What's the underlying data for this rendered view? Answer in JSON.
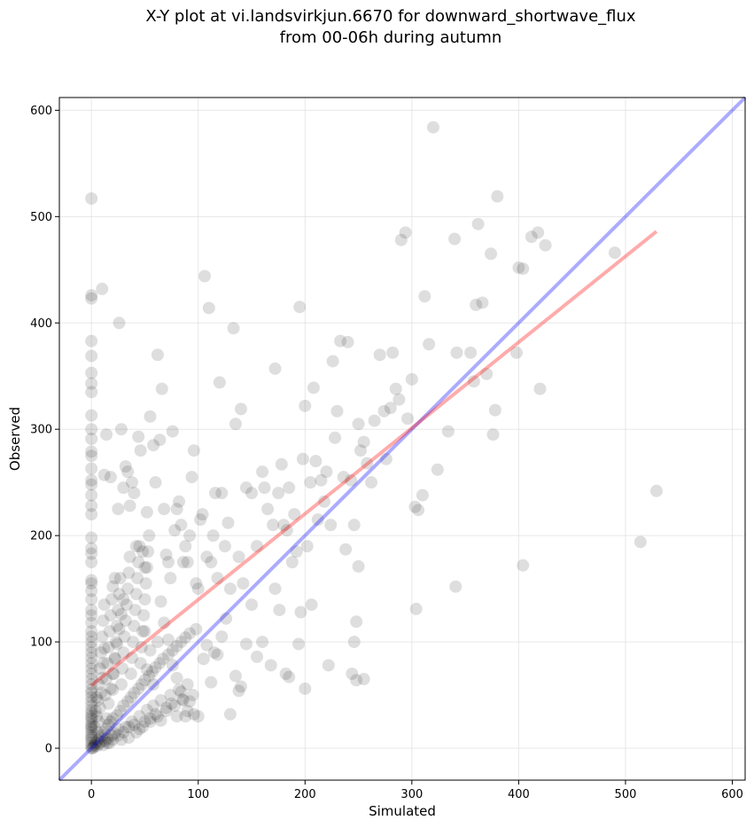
{
  "chart_data": {
    "type": "scatter",
    "title_line1": "X-Y plot at vi.landsvirkjun.6670 for downward_shortwave_flux",
    "title_line2": "from 00-06h during autumn",
    "xlabel": "Simulated",
    "ylabel": "Observed",
    "xlim": [
      -30,
      612
    ],
    "ylim": [
      -30,
      612
    ],
    "xticks": [
      0,
      100,
      200,
      300,
      400,
      500,
      600
    ],
    "yticks": [
      0,
      100,
      200,
      300,
      400,
      500,
      600
    ],
    "xtick_labels": [
      "0",
      "100",
      "200",
      "300",
      "400",
      "500",
      "600"
    ],
    "ytick_labels": [
      "0",
      "100",
      "200",
      "300",
      "400",
      "500",
      "600"
    ],
    "grid": true,
    "point_color": "#000000",
    "point_opacity": 0.13,
    "one_to_one_line": {
      "color": "#0000ff",
      "from": [
        -30,
        -30
      ],
      "to": [
        612,
        612
      ]
    },
    "fit_line": {
      "color": "#ff0000",
      "from": [
        0,
        59
      ],
      "to": [
        529,
        486
      ]
    },
    "points": [
      [
        0,
        0
      ],
      [
        0,
        2
      ],
      [
        0,
        5
      ],
      [
        0,
        8
      ],
      [
        0,
        10
      ],
      [
        0,
        12
      ],
      [
        0,
        15
      ],
      [
        0,
        18
      ],
      [
        0,
        20
      ],
      [
        0,
        22
      ],
      [
        0,
        25
      ],
      [
        0,
        28
      ],
      [
        0,
        30
      ],
      [
        0,
        33
      ],
      [
        0,
        36
      ],
      [
        0,
        40
      ],
      [
        0,
        44
      ],
      [
        0,
        48
      ],
      [
        0,
        52
      ],
      [
        0,
        55
      ],
      [
        0,
        60
      ],
      [
        0,
        65
      ],
      [
        0,
        70
      ],
      [
        0,
        75
      ],
      [
        0,
        80
      ],
      [
        0,
        85
      ],
      [
        0,
        90
      ],
      [
        0,
        95
      ],
      [
        0,
        100
      ],
      [
        0,
        105
      ],
      [
        0,
        110
      ],
      [
        0,
        118
      ],
      [
        0,
        125
      ],
      [
        0,
        130
      ],
      [
        0,
        140
      ],
      [
        0,
        148
      ],
      [
        0,
        155
      ],
      [
        0,
        158
      ],
      [
        0,
        175
      ],
      [
        0,
        183
      ],
      [
        0,
        188
      ],
      [
        0,
        198
      ],
      [
        0,
        220
      ],
      [
        0,
        228
      ],
      [
        0,
        238
      ],
      [
        0,
        248
      ],
      [
        0,
        252
      ],
      [
        0,
        263
      ],
      [
        0,
        275
      ],
      [
        0,
        279
      ],
      [
        0,
        291
      ],
      [
        0,
        300
      ],
      [
        0,
        313
      ],
      [
        0,
        335
      ],
      [
        0,
        343
      ],
      [
        0,
        353
      ],
      [
        0,
        369
      ],
      [
        0,
        383
      ],
      [
        0,
        423
      ],
      [
        0,
        426
      ],
      [
        0,
        517
      ],
      [
        1,
        0
      ],
      [
        2,
        1
      ],
      [
        3,
        3
      ],
      [
        4,
        5
      ],
      [
        5,
        2
      ],
      [
        6,
        8
      ],
      [
        7,
        4
      ],
      [
        8,
        10
      ],
      [
        9,
        6
      ],
      [
        10,
        12
      ],
      [
        11,
        3
      ],
      [
        12,
        15
      ],
      [
        13,
        7
      ],
      [
        14,
        18
      ],
      [
        15,
        9
      ],
      [
        16,
        22
      ],
      [
        17,
        5
      ],
      [
        18,
        25
      ],
      [
        19,
        12
      ],
      [
        20,
        28
      ],
      [
        22,
        14
      ],
      [
        24,
        31
      ],
      [
        25,
        18
      ],
      [
        27,
        35
      ],
      [
        28,
        8
      ],
      [
        30,
        40
      ],
      [
        32,
        20
      ],
      [
        34,
        44
      ],
      [
        35,
        10
      ],
      [
        37,
        48
      ],
      [
        38,
        25
      ],
      [
        40,
        52
      ],
      [
        42,
        15
      ],
      [
        44,
        56
      ],
      [
        45,
        30
      ],
      [
        47,
        60
      ],
      [
        48,
        20
      ],
      [
        50,
        64
      ],
      [
        52,
        36
      ],
      [
        54,
        68
      ],
      [
        55,
        25
      ],
      [
        57,
        72
      ],
      [
        58,
        40
      ],
      [
        60,
        76
      ],
      [
        62,
        30
      ],
      [
        64,
        80
      ],
      [
        65,
        45
      ],
      [
        67,
        84
      ],
      [
        70,
        35
      ],
      [
        72,
        88
      ],
      [
        74,
        50
      ],
      [
        76,
        92
      ],
      [
        78,
        40
      ],
      [
        80,
        96
      ],
      [
        82,
        55
      ],
      [
        84,
        100
      ],
      [
        86,
        45
      ],
      [
        88,
        104
      ],
      [
        90,
        60
      ],
      [
        92,
        108
      ],
      [
        95,
        50
      ],
      [
        98,
        112
      ],
      [
        5,
        30
      ],
      [
        6,
        45
      ],
      [
        7,
        60
      ],
      [
        8,
        75
      ],
      [
        9,
        90
      ],
      [
        10,
        105
      ],
      [
        11,
        120
      ],
      [
        12,
        135
      ],
      [
        13,
        50
      ],
      [
        14,
        65
      ],
      [
        15,
        80
      ],
      [
        16,
        95
      ],
      [
        17,
        110
      ],
      [
        18,
        125
      ],
      [
        19,
        140
      ],
      [
        20,
        55
      ],
      [
        21,
        70
      ],
      [
        22,
        85
      ],
      [
        23,
        100
      ],
      [
        24,
        115
      ],
      [
        25,
        130
      ],
      [
        26,
        145
      ],
      [
        27,
        160
      ],
      [
        28,
        60
      ],
      [
        29,
        75
      ],
      [
        30,
        90
      ],
      [
        31,
        105
      ],
      [
        32,
        120
      ],
      [
        33,
        135
      ],
      [
        34,
        150
      ],
      [
        35,
        165
      ],
      [
        36,
        180
      ],
      [
        37,
        70
      ],
      [
        38,
        85
      ],
      [
        39,
        100
      ],
      [
        40,
        115
      ],
      [
        41,
        130
      ],
      [
        42,
        145
      ],
      [
        43,
        160
      ],
      [
        44,
        175
      ],
      [
        45,
        190
      ],
      [
        46,
        80
      ],
      [
        47,
        95
      ],
      [
        48,
        110
      ],
      [
        49,
        125
      ],
      [
        50,
        140
      ],
      [
        51,
        155
      ],
      [
        52,
        170
      ],
      [
        53,
        185
      ],
      [
        54,
        200
      ],
      [
        3,
        20
      ],
      [
        4,
        35
      ],
      [
        5,
        48
      ],
      [
        6,
        15
      ],
      [
        7,
        25
      ],
      [
        8,
        38
      ],
      [
        9,
        52
      ],
      [
        10,
        66
      ],
      [
        11,
        80
      ],
      [
        12,
        94
      ],
      [
        14,
        28
      ],
      [
        16,
        42
      ],
      [
        18,
        56
      ],
      [
        20,
        70
      ],
      [
        22,
        84
      ],
      [
        24,
        98
      ],
      [
        26,
        112
      ],
      [
        28,
        126
      ],
      [
        30,
        140
      ],
      [
        15,
        5
      ],
      [
        20,
        8
      ],
      [
        25,
        12
      ],
      [
        30,
        15
      ],
      [
        35,
        20
      ],
      [
        40,
        22
      ],
      [
        45,
        18
      ],
      [
        50,
        25
      ],
      [
        55,
        28
      ],
      [
        60,
        32
      ],
      [
        65,
        26
      ],
      [
        70,
        38
      ],
      [
        75,
        42
      ],
      [
        80,
        30
      ],
      [
        85,
        46
      ],
      [
        90,
        35
      ],
      [
        10,
        432
      ],
      [
        12,
        257
      ],
      [
        14,
        295
      ],
      [
        18,
        255
      ],
      [
        20,
        152
      ],
      [
        22,
        160
      ],
      [
        25,
        225
      ],
      [
        26,
        400
      ],
      [
        28,
        300
      ],
      [
        30,
        245
      ],
      [
        32,
        265
      ],
      [
        34,
        260
      ],
      [
        36,
        228
      ],
      [
        38,
        250
      ],
      [
        40,
        240
      ],
      [
        42,
        190
      ],
      [
        44,
        293
      ],
      [
        46,
        280
      ],
      [
        48,
        185
      ],
      [
        50,
        170
      ],
      [
        52,
        222
      ],
      [
        55,
        312
      ],
      [
        58,
        285
      ],
      [
        60,
        250
      ],
      [
        62,
        370
      ],
      [
        64,
        290
      ],
      [
        66,
        338
      ],
      [
        68,
        225
      ],
      [
        70,
        182
      ],
      [
        72,
        175
      ],
      [
        74,
        160
      ],
      [
        76,
        298
      ],
      [
        78,
        205
      ],
      [
        80,
        225
      ],
      [
        82,
        232
      ],
      [
        84,
        210
      ],
      [
        86,
        175
      ],
      [
        88,
        190
      ],
      [
        90,
        175
      ],
      [
        92,
        200
      ],
      [
        94,
        255
      ],
      [
        96,
        280
      ],
      [
        98,
        155
      ],
      [
        100,
        150
      ],
      [
        102,
        215
      ],
      [
        104,
        220
      ],
      [
        106,
        444
      ],
      [
        108,
        180
      ],
      [
        110,
        414
      ],
      [
        112,
        175
      ],
      [
        114,
        200
      ],
      [
        116,
        240
      ],
      [
        118,
        160
      ],
      [
        120,
        344
      ],
      [
        122,
        240
      ],
      [
        125,
        190
      ],
      [
        128,
        212
      ],
      [
        130,
        150
      ],
      [
        133,
        395
      ],
      [
        135,
        305
      ],
      [
        138,
        180
      ],
      [
        140,
        319
      ],
      [
        142,
        155
      ],
      [
        145,
        245
      ],
      [
        150,
        240
      ],
      [
        155,
        190
      ],
      [
        160,
        260
      ],
      [
        162,
        245
      ],
      [
        165,
        225
      ],
      [
        170,
        210
      ],
      [
        172,
        357
      ],
      [
        175,
        240
      ],
      [
        178,
        267
      ],
      [
        180,
        210
      ],
      [
        183,
        205
      ],
      [
        185,
        245
      ],
      [
        188,
        175
      ],
      [
        190,
        220
      ],
      [
        192,
        185
      ],
      [
        195,
        415
      ],
      [
        198,
        272
      ],
      [
        200,
        322
      ],
      [
        202,
        190
      ],
      [
        205,
        250
      ],
      [
        208,
        339
      ],
      [
        210,
        270
      ],
      [
        212,
        215
      ],
      [
        215,
        252
      ],
      [
        218,
        232
      ],
      [
        220,
        260
      ],
      [
        224,
        210
      ],
      [
        226,
        364
      ],
      [
        228,
        292
      ],
      [
        230,
        317
      ],
      [
        233,
        383
      ],
      [
        236,
        255
      ],
      [
        240,
        382
      ],
      [
        243,
        252
      ],
      [
        246,
        210
      ],
      [
        250,
        305
      ],
      [
        252,
        280
      ],
      [
        255,
        288
      ],
      [
        258,
        268
      ],
      [
        262,
        250
      ],
      [
        265,
        308
      ],
      [
        270,
        370
      ],
      [
        274,
        317
      ],
      [
        276,
        272
      ],
      [
        280,
        320
      ],
      [
        282,
        372
      ],
      [
        285,
        338
      ],
      [
        288,
        328
      ],
      [
        290,
        478
      ],
      [
        294,
        485
      ],
      [
        296,
        310
      ],
      [
        300,
        347
      ],
      [
        303,
        227
      ],
      [
        306,
        224
      ],
      [
        310,
        238
      ],
      [
        312,
        425
      ],
      [
        316,
        380
      ],
      [
        320,
        584
      ],
      [
        324,
        262
      ],
      [
        334,
        298
      ],
      [
        340,
        479
      ],
      [
        342,
        372
      ],
      [
        355,
        372
      ],
      [
        358,
        345
      ],
      [
        360,
        417
      ],
      [
        362,
        493
      ],
      [
        366,
        419
      ],
      [
        370,
        352
      ],
      [
        374,
        465
      ],
      [
        376,
        295
      ],
      [
        378,
        318
      ],
      [
        380,
        519
      ],
      [
        398,
        372
      ],
      [
        400,
        452
      ],
      [
        404,
        451
      ],
      [
        412,
        481
      ],
      [
        418,
        485
      ],
      [
        420,
        338
      ],
      [
        425,
        473
      ],
      [
        490,
        466
      ],
      [
        514,
        194
      ],
      [
        529,
        242
      ],
      [
        404,
        172
      ],
      [
        341,
        152
      ],
      [
        304,
        131
      ],
      [
        255,
        65
      ],
      [
        248,
        64
      ],
      [
        244,
        70
      ],
      [
        246,
        100
      ],
      [
        248,
        119
      ],
      [
        250,
        171
      ],
      [
        238,
        187
      ],
      [
        222,
        78
      ],
      [
        206,
        135
      ],
      [
        200,
        56
      ],
      [
        196,
        128
      ],
      [
        194,
        98
      ],
      [
        185,
        67
      ],
      [
        182,
        70
      ],
      [
        176,
        130
      ],
      [
        172,
        150
      ],
      [
        168,
        78
      ],
      [
        160,
        100
      ],
      [
        155,
        86
      ],
      [
        150,
        135
      ],
      [
        145,
        98
      ],
      [
        140,
        58
      ],
      [
        138,
        54
      ],
      [
        135,
        68
      ],
      [
        130,
        32
      ],
      [
        126,
        122
      ],
      [
        122,
        105
      ],
      [
        118,
        88
      ],
      [
        115,
        90
      ],
      [
        112,
        62
      ],
      [
        108,
        97
      ],
      [
        105,
        84
      ],
      [
        100,
        30
      ],
      [
        96,
        32
      ],
      [
        92,
        44
      ],
      [
        88,
        30
      ],
      [
        84,
        53
      ],
      [
        80,
        66
      ],
      [
        76,
        78
      ],
      [
        72,
        102
      ],
      [
        68,
        118
      ],
      [
        65,
        138
      ],
      [
        62,
        100
      ],
      [
        58,
        60
      ],
      [
        55,
        92
      ],
      [
        52,
        74
      ],
      [
        50,
        110
      ]
    ]
  }
}
